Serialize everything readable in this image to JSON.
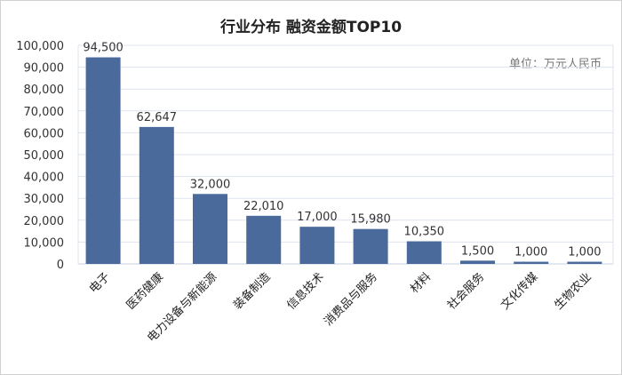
{
  "chart_data": {
    "type": "bar",
    "title": "行业分布 融资金额TOP10",
    "unit_note": "单位：万元人民币",
    "categories": [
      "电子",
      "医药健康",
      "电力设备与新能源",
      "装备制造",
      "信息技术",
      "消费品与服务",
      "材料",
      "社会服务",
      "文化传媒",
      "生物农业"
    ],
    "values": [
      94500,
      62647,
      32000,
      22010,
      17000,
      15980,
      10350,
      1500,
      1000,
      1000
    ],
    "data_labels": [
      "94,500",
      "62,647",
      "32,000",
      "22,010",
      "17,000",
      "15,980",
      "10,350",
      "1,500",
      "1,000",
      "1,000"
    ],
    "xlabel": "",
    "ylabel": "",
    "ylim": [
      0,
      100000
    ],
    "yticks": [
      "0",
      "10,000",
      "20,000",
      "30,000",
      "40,000",
      "50,000",
      "60,000",
      "70,000",
      "80,000",
      "90,000",
      "100,000"
    ],
    "grid": true,
    "legend": "none",
    "bar_color": "#4a6a9b",
    "grid_color": "#dde3ee"
  }
}
